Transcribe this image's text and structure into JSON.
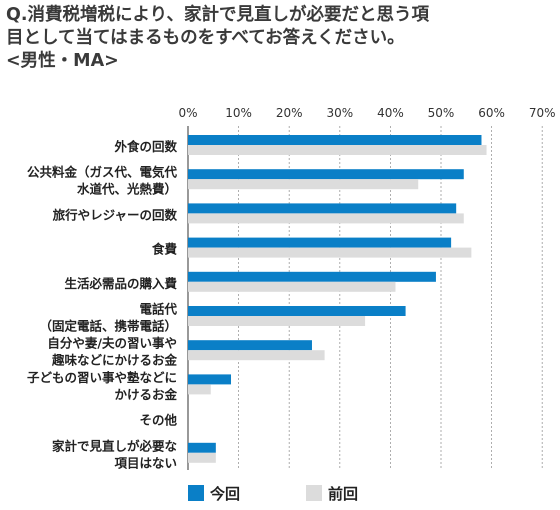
{
  "title_lines": [
    "Q.消費税増税により、家計で見直しが必要だと思う項",
    "目として当てはまるものをすべてお答えください。",
    "<男性・MA>"
  ],
  "colors": {
    "current": "#0a7fc7",
    "previous": "#dcdcdc",
    "grid": "#9a9a9a",
    "axis": "#555555"
  },
  "chart_data": {
    "type": "bar",
    "orientation": "horizontal",
    "categories": [
      [
        "外食の回数"
      ],
      [
        "公共料金（ガス代、電気代",
        "水道代、光熱費）"
      ],
      [
        "旅行やレジャーの回数"
      ],
      [
        "食費"
      ],
      [
        "生活必需品の購入費"
      ],
      [
        "電話代",
        "（固定電話、携帯電話）"
      ],
      [
        "自分や妻/夫の習い事や",
        "趣味などにかけるお金"
      ],
      [
        "子どもの習い事や塾などに",
        "かけるお金"
      ],
      [
        "その他"
      ],
      [
        "家計で見直しが必要な",
        "項目はない"
      ]
    ],
    "series": [
      {
        "name": "今回",
        "values": [
          58,
          54.5,
          53,
          52,
          49,
          43,
          24.5,
          8.5,
          0,
          5.5
        ]
      },
      {
        "name": "前回",
        "values": [
          59,
          45.5,
          54.5,
          56,
          41,
          35,
          27,
          4.5,
          0,
          5.5
        ]
      }
    ],
    "ticks": [
      0,
      10,
      20,
      30,
      40,
      50,
      60,
      70
    ],
    "tick_labels": [
      "0%",
      "10%",
      "20%",
      "30%",
      "40%",
      "50%",
      "60%",
      "70%"
    ],
    "xlim": [
      0,
      70
    ],
    "grid": true,
    "legend_position": "bottom"
  }
}
